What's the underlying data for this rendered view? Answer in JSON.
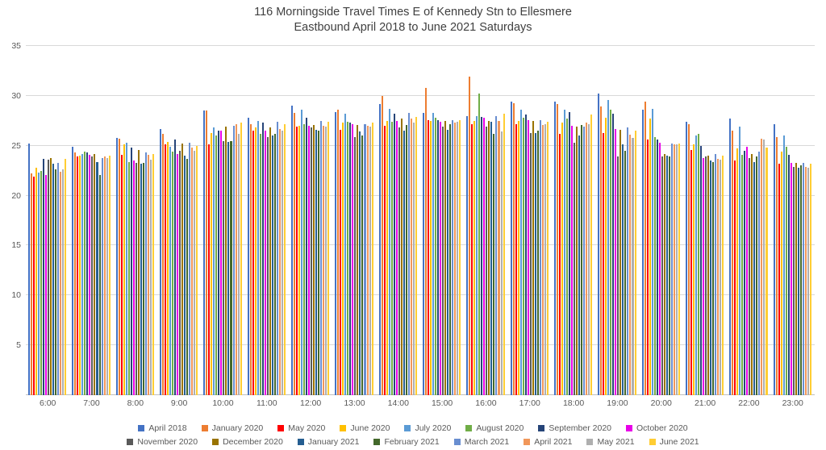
{
  "chart_data": {
    "type": "bar",
    "title_line1": "116 Morningside Travel Times E of Kennedy Stn to Ellesmere",
    "title_line2": "Eastbound April 2018 to June 2021 Saturdays",
    "xlabel": "",
    "ylabel": "",
    "ylim": [
      0,
      35
    ],
    "yticks": [
      5,
      10,
      15,
      20,
      25,
      30,
      35
    ],
    "grid": "horizontal",
    "legend_position": "bottom-two-rows",
    "categories": [
      "6:00",
      "7:00",
      "8:00",
      "9:00",
      "10:00",
      "11:00",
      "12:00",
      "13:00",
      "14:00",
      "15:00",
      "16:00",
      "17:00",
      "18:00",
      "19:00",
      "20:00",
      "21:00",
      "22:00",
      "23:00"
    ],
    "series": [
      {
        "name": "April 2018",
        "color": "#4472C4",
        "values": [
          25.2,
          24.9,
          25.8,
          26.7,
          28.5,
          27.8,
          29.0,
          28.4,
          29.2,
          28.3,
          28.0,
          29.4,
          29.4,
          30.2,
          28.6,
          27.4,
          27.7,
          27.2
        ]
      },
      {
        "name": "January 2020",
        "color": "#ED7D31",
        "values": [
          22.2,
          24.3,
          25.7,
          26.2,
          28.5,
          27.2,
          28.3,
          28.6,
          30.0,
          30.8,
          31.9,
          29.3,
          29.2,
          28.9,
          29.4,
          27.2,
          26.5,
          25.9
        ]
      },
      {
        "name": "May 2020",
        "color": "#FF0000",
        "values": [
          21.9,
          23.9,
          24.1,
          25.1,
          25.1,
          26.5,
          26.9,
          26.6,
          27.0,
          27.6,
          27.2,
          27.2,
          26.2,
          26.3,
          25.6,
          24.6,
          23.5,
          23.2
        ]
      },
      {
        "name": "June 2020",
        "color": "#FFC000",
        "values": [
          22.8,
          24.0,
          25.1,
          25.4,
          26.3,
          26.8,
          27.0,
          27.3,
          27.5,
          27.5,
          27.5,
          27.5,
          27.3,
          27.8,
          27.7,
          25.1,
          24.7,
          24.4
        ]
      },
      {
        "name": "July 2020",
        "color": "#5B9BD5",
        "values": [
          22.3,
          24.2,
          25.3,
          24.9,
          26.8,
          27.5,
          28.6,
          28.2,
          28.7,
          28.3,
          28.0,
          28.6,
          28.6,
          29.6,
          28.7,
          26.0,
          26.9,
          26.0
        ]
      },
      {
        "name": "August 2020",
        "color": "#70AD47",
        "values": [
          22.5,
          24.4,
          23.4,
          24.4,
          26.0,
          26.2,
          27.2,
          27.4,
          27.4,
          27.8,
          30.2,
          27.8,
          27.7,
          28.6,
          25.9,
          26.2,
          24.1,
          24.9
        ]
      },
      {
        "name": "September 2020",
        "color": "#264478",
        "values": [
          23.7,
          24.3,
          24.8,
          25.6,
          26.5,
          27.3,
          27.8,
          27.3,
          28.2,
          27.6,
          27.9,
          28.1,
          28.4,
          28.2,
          25.6,
          25.0,
          24.5,
          24.1
        ]
      },
      {
        "name": "October 2020",
        "color": "#E800E8",
        "values": [
          22.1,
          24.1,
          23.5,
          24.2,
          26.5,
          26.5,
          27.0,
          27.2,
          27.5,
          27.4,
          27.8,
          27.6,
          27.0,
          26.7,
          25.3,
          23.8,
          24.9,
          23.3
        ]
      },
      {
        "name": "November 2020",
        "color": "#5A5A5A",
        "values": [
          23.6,
          23.9,
          23.3,
          24.5,
          25.5,
          25.9,
          26.8,
          25.9,
          26.8,
          26.9,
          26.9,
          26.3,
          25.3,
          23.9,
          23.9,
          23.9,
          23.8,
          22.9
        ]
      },
      {
        "name": "December 2020",
        "color": "#997300",
        "values": [
          23.8,
          24.2,
          24.6,
          25.2,
          26.9,
          26.8,
          27.1,
          27.1,
          27.7,
          27.5,
          27.5,
          27.5,
          26.9,
          26.6,
          24.2,
          24.0,
          24.2,
          23.3
        ]
      },
      {
        "name": "January 2021",
        "color": "#255E91",
        "values": [
          23.2,
          23.4,
          23.2,
          24.0,
          25.4,
          26.0,
          26.6,
          26.4,
          26.5,
          26.6,
          27.4,
          26.3,
          26.0,
          25.1,
          24.0,
          23.5,
          23.4,
          22.8
        ]
      },
      {
        "name": "February 2021",
        "color": "#43682B",
        "values": [
          22.6,
          22.1,
          23.3,
          23.7,
          25.5,
          26.2,
          26.5,
          26.0,
          27.1,
          27.2,
          26.2,
          26.5,
          27.1,
          24.5,
          23.9,
          23.4,
          23.9,
          23.0
        ]
      },
      {
        "name": "March 2021",
        "color": "#698ED0",
        "values": [
          23.3,
          23.8,
          24.3,
          25.3,
          27.0,
          27.4,
          27.5,
          27.2,
          28.3,
          27.6,
          28.0,
          27.6,
          26.9,
          26.8,
          25.2,
          24.2,
          24.4,
          23.3
        ]
      },
      {
        "name": "April 2021",
        "color": "#F1975A",
        "values": [
          22.4,
          23.9,
          24.1,
          24.8,
          27.2,
          26.7,
          27.0,
          27.0,
          27.7,
          27.3,
          27.5,
          27.1,
          27.3,
          26.1,
          25.1,
          23.7,
          25.7,
          22.9
        ]
      },
      {
        "name": "May 2021",
        "color": "#AFAFAF",
        "values": [
          22.6,
          23.8,
          23.6,
          24.5,
          26.2,
          26.5,
          26.9,
          26.9,
          27.3,
          27.4,
          26.4,
          27.2,
          27.2,
          25.8,
          25.1,
          23.6,
          25.6,
          22.8
        ]
      },
      {
        "name": "June 2021",
        "color": "#FFCD33",
        "values": [
          23.7,
          24.0,
          24.2,
          25.0,
          27.3,
          27.2,
          27.4,
          27.3,
          27.9,
          27.6,
          28.2,
          27.4,
          28.1,
          26.5,
          25.2,
          24.0,
          24.8,
          23.2
        ]
      }
    ]
  }
}
